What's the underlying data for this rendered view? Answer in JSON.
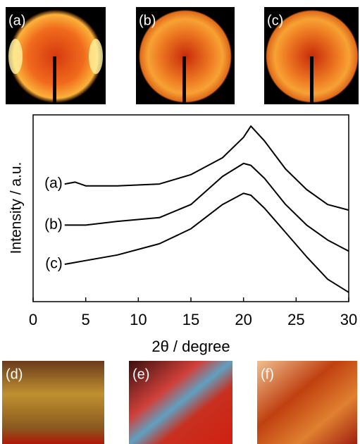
{
  "top_images": [
    {
      "label": "(a)"
    },
    {
      "label": "(b)"
    },
    {
      "label": "(c)"
    }
  ],
  "bottom_images": [
    {
      "label": "(d)"
    },
    {
      "label": "(e)"
    },
    {
      "label": "(f)"
    }
  ],
  "chart_data": {
    "type": "line",
    "xlabel": "2θ / degree",
    "ylabel": "Intensity / a.u.",
    "x": [
      3,
      4,
      5,
      8,
      12,
      15,
      18,
      20,
      20.7,
      22,
      24,
      26,
      28,
      30
    ],
    "series": [
      {
        "name": "(a)",
        "color": "#000000",
        "values": [
          63,
          64,
          62,
          62,
          63,
          68,
          77,
          88,
          94,
          86,
          71,
          60,
          52,
          49
        ]
      },
      {
        "name": "(b)",
        "color": "#000000",
        "values": [
          41,
          41,
          41,
          43,
          45,
          52,
          67,
          74,
          73,
          66,
          52,
          41,
          33,
          27
        ]
      },
      {
        "name": "(c)",
        "color": "#000000",
        "values": [
          20,
          21,
          22,
          25,
          31,
          39,
          52,
          58,
          57,
          50,
          37,
          24,
          12,
          5
        ]
      }
    ],
    "xlim": [
      0,
      30
    ],
    "xticks": [
      0,
      5,
      10,
      15,
      20,
      25,
      30
    ],
    "ylim": [
      0,
      100
    ]
  }
}
